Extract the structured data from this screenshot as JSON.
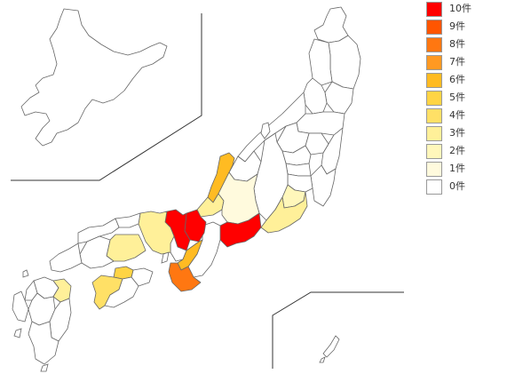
{
  "map": {
    "legend": [
      {
        "label": "10件",
        "color": "#ff0000"
      },
      {
        "label": "9件",
        "color": "#ff5500"
      },
      {
        "label": "8件",
        "color": "#ff7711"
      },
      {
        "label": "7件",
        "color": "#ff9922"
      },
      {
        "label": "6件",
        "color": "#ffbb22"
      },
      {
        "label": "5件",
        "color": "#ffd444"
      },
      {
        "label": "4件",
        "color": "#ffe066"
      },
      {
        "label": "3件",
        "color": "#fff099"
      },
      {
        "label": "2件",
        "color": "#fff7bb"
      },
      {
        "label": "1件",
        "color": "#fffadd"
      },
      {
        "label": "0件",
        "color": "#ffffff"
      }
    ],
    "regions": [
      {
        "name": "Hokkaido",
        "count": 0
      },
      {
        "name": "Aomori",
        "count": 0
      },
      {
        "name": "Iwate",
        "count": 0
      },
      {
        "name": "Miyagi",
        "count": 0
      },
      {
        "name": "Akita",
        "count": 0
      },
      {
        "name": "Yamagata",
        "count": 0
      },
      {
        "name": "Fukushima",
        "count": 0
      },
      {
        "name": "Ibaraki",
        "count": 0
      },
      {
        "name": "Tochigi",
        "count": 0
      },
      {
        "name": "Gunma",
        "count": 0
      },
      {
        "name": "Saitama",
        "count": 0
      },
      {
        "name": "Chiba",
        "count": 0
      },
      {
        "name": "Tokyo",
        "count": 0
      },
      {
        "name": "Kanagawa",
        "count": 0
      },
      {
        "name": "Niigata",
        "count": 0
      },
      {
        "name": "Toyama",
        "count": 0
      },
      {
        "name": "Ishikawa",
        "count": 6
      },
      {
        "name": "Fukui",
        "count": 3
      },
      {
        "name": "Yamanashi",
        "count": 2
      },
      {
        "name": "Nagano",
        "count": 0
      },
      {
        "name": "Gifu",
        "count": 1
      },
      {
        "name": "Shizuoka",
        "count": 3
      },
      {
        "name": "Aichi",
        "count": 10
      },
      {
        "name": "Mie",
        "count": 0
      },
      {
        "name": "Shiga",
        "count": 10
      },
      {
        "name": "Kyoto",
        "count": 10
      },
      {
        "name": "Osaka",
        "count": 0
      },
      {
        "name": "Hyogo",
        "count": 3
      },
      {
        "name": "Nara",
        "count": 6
      },
      {
        "name": "Wakayama",
        "count": 8
      },
      {
        "name": "Tottori",
        "count": 0
      },
      {
        "name": "Shimane",
        "count": 0
      },
      {
        "name": "Okayama",
        "count": 3
      },
      {
        "name": "Hiroshima",
        "count": 0
      },
      {
        "name": "Yamaguchi",
        "count": 0
      },
      {
        "name": "Tokushima",
        "count": 0
      },
      {
        "name": "Kagawa",
        "count": 5
      },
      {
        "name": "Ehime",
        "count": 4
      },
      {
        "name": "Kochi",
        "count": 0
      },
      {
        "name": "Fukuoka",
        "count": 0
      },
      {
        "name": "Saga",
        "count": 0
      },
      {
        "name": "Nagasaki",
        "count": 0
      },
      {
        "name": "Kumamoto",
        "count": 0
      },
      {
        "name": "Oita",
        "count": 3
      },
      {
        "name": "Miyazaki",
        "count": 0
      },
      {
        "name": "Kagoshima",
        "count": 0
      },
      {
        "name": "Okinawa",
        "count": 0
      }
    ]
  }
}
